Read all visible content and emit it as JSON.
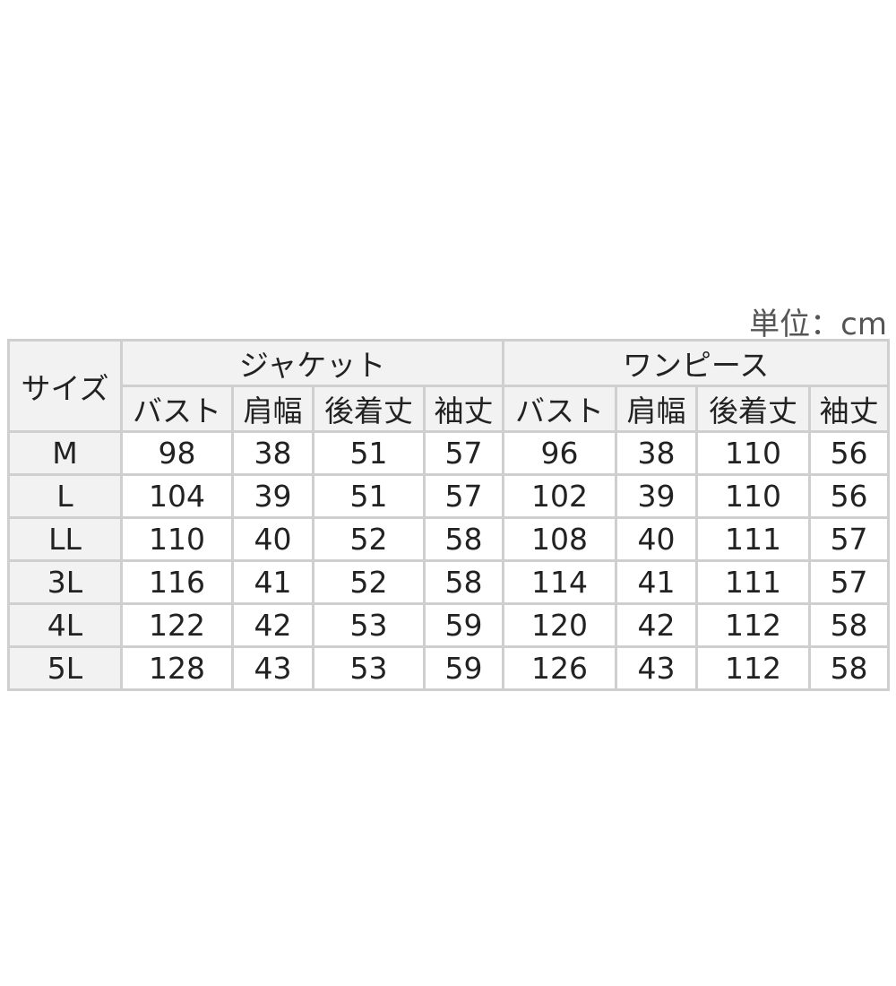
{
  "unit_label": "単位：cm",
  "header": {
    "size": "サイズ",
    "groups": [
      "ジャケット",
      "ワンピース"
    ],
    "jacket_cols": [
      "バスト",
      "肩幅",
      "後着丈",
      "袖丈"
    ],
    "dress_cols": [
      "バスト",
      "肩幅",
      "後着丈",
      "袖丈"
    ]
  },
  "rows": [
    {
      "size": "M",
      "jacket": [
        "98",
        "38",
        "51",
        "57"
      ],
      "dress": [
        "96",
        "38",
        "110",
        "56"
      ]
    },
    {
      "size": "L",
      "jacket": [
        "104",
        "39",
        "51",
        "57"
      ],
      "dress": [
        "102",
        "39",
        "110",
        "56"
      ]
    },
    {
      "size": "LL",
      "jacket": [
        "110",
        "40",
        "52",
        "58"
      ],
      "dress": [
        "108",
        "40",
        "111",
        "57"
      ]
    },
    {
      "size": "3L",
      "jacket": [
        "116",
        "41",
        "52",
        "58"
      ],
      "dress": [
        "114",
        "41",
        "111",
        "57"
      ]
    },
    {
      "size": "4L",
      "jacket": [
        "122",
        "42",
        "53",
        "59"
      ],
      "dress": [
        "120",
        "42",
        "112",
        "58"
      ]
    },
    {
      "size": "5L",
      "jacket": [
        "128",
        "43",
        "53",
        "59"
      ],
      "dress": [
        "126",
        "43",
        "112",
        "58"
      ]
    }
  ]
}
